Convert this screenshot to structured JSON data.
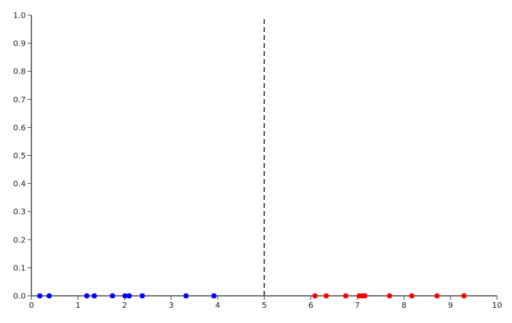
{
  "chart_data": {
    "type": "scatter",
    "xlim": [
      0,
      10
    ],
    "ylim": [
      0,
      1
    ],
    "x_ticks": [
      "0",
      "1",
      "2",
      "3",
      "4",
      "5",
      "6",
      "7",
      "8",
      "9",
      "10"
    ],
    "y_ticks": [
      "0.0",
      "0.1",
      "0.2",
      "0.3",
      "0.4",
      "0.5",
      "0.6",
      "0.7",
      "0.8",
      "0.9",
      "1.0"
    ],
    "grid": false,
    "series": [
      {
        "color": "#0000ff",
        "x": [
          0.18,
          0.38,
          1.19,
          1.35,
          1.74,
          2.01,
          2.1,
          2.38,
          3.32,
          3.92
        ],
        "y": [
          0,
          0,
          0,
          0,
          0,
          0,
          0,
          0,
          0,
          0
        ]
      },
      {
        "color": "#ff0000",
        "x": [
          6.09,
          6.33,
          6.75,
          7.04,
          7.1,
          7.16,
          7.69,
          8.17,
          8.71,
          9.29
        ],
        "y": [
          0,
          0,
          0,
          0,
          0,
          0,
          0,
          0,
          0,
          0
        ]
      }
    ],
    "vline": {
      "x": 5,
      "y_range": [
        0,
        0.99
      ],
      "style": "dashed",
      "color": "#333333"
    }
  }
}
